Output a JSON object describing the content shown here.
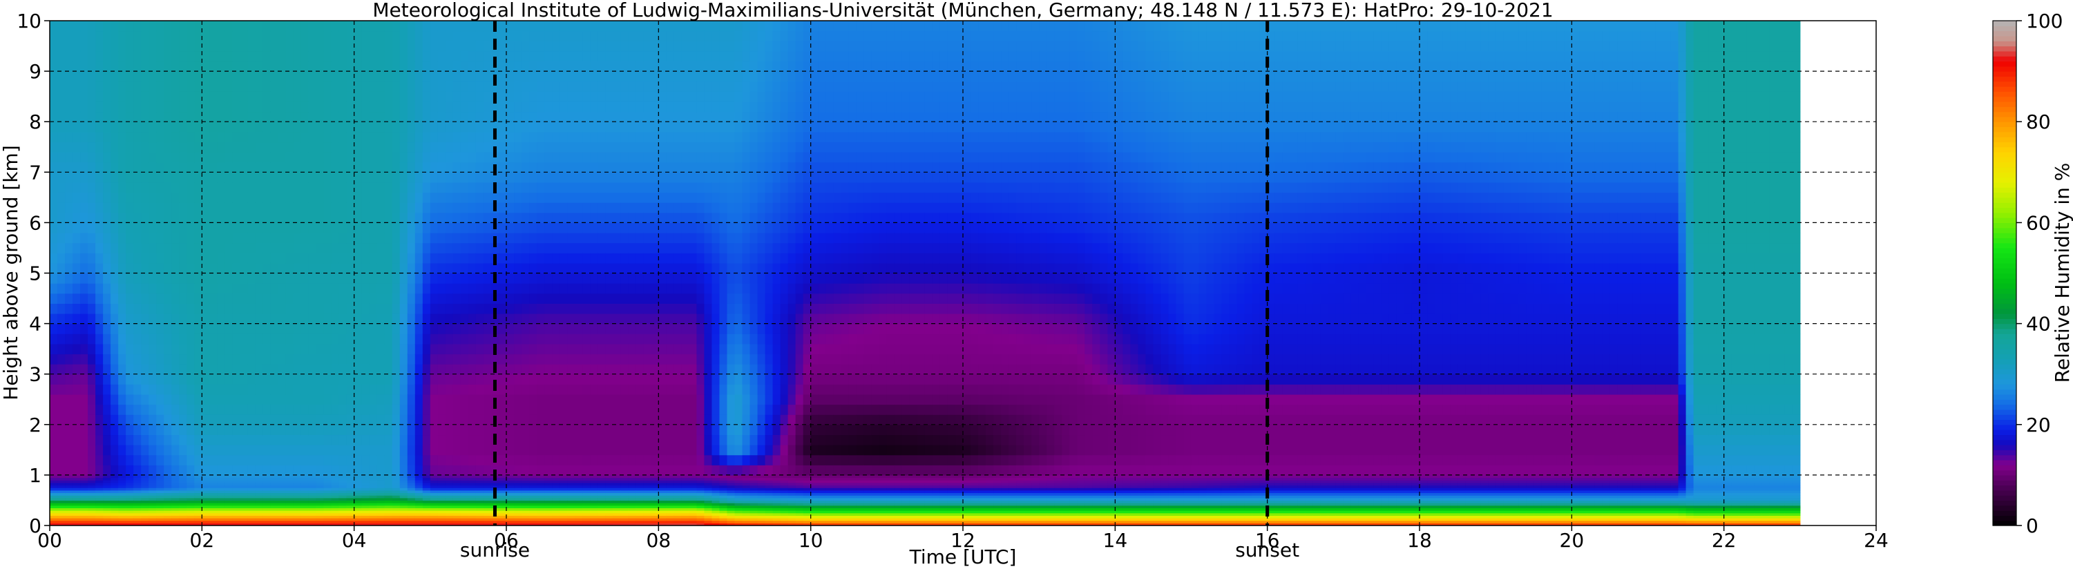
{
  "chart_data": {
    "type": "heatmap",
    "title": "Meteorological Institute of Ludwig-Maximilians-Universität (München, Germany; 48.148 N / 11.573 E):    HatPro: 29-10-2021",
    "xlabel": "Time [UTC]",
    "ylabel": "Height above ground [km]",
    "xlim": [
      0,
      24
    ],
    "ylim": [
      0,
      10
    ],
    "x_ticks": [
      "00",
      "02",
      "04",
      "06",
      "08",
      "10",
      "12",
      "14",
      "16",
      "18",
      "20",
      "22",
      "24"
    ],
    "y_ticks": [
      "0",
      "1",
      "2",
      "3",
      "4",
      "5",
      "6",
      "7",
      "8",
      "9",
      "10"
    ],
    "grid": true,
    "data_end_hour": 23,
    "events": [
      {
        "label": "sunrise",
        "time": 5.85
      },
      {
        "label": "sunset",
        "time": 16.0
      }
    ],
    "colorbar": {
      "label": "Relative Humidity in %",
      "range": [
        0,
        100
      ],
      "ticks": [
        "0",
        "20",
        "40",
        "60",
        "80",
        "100"
      ],
      "colormap": "ncar-like: black-purple-blue-cyan-teal-green-yellow-orange-red-gray"
    },
    "profiles": [
      {
        "time": 0,
        "rh_km": [
          95,
          70,
          40,
          18,
          12,
          12,
          12,
          12,
          14,
          20,
          28,
          30,
          30,
          32,
          32
        ]
      },
      {
        "time": 0.5,
        "rh_km": [
          95,
          70,
          40,
          18,
          12,
          12,
          12,
          12,
          13,
          18,
          24,
          28,
          30,
          32,
          32
        ]
      },
      {
        "time": 1.0,
        "rh_km": [
          95,
          68,
          40,
          20,
          18,
          20,
          22,
          25,
          28,
          30,
          32,
          33,
          34,
          34,
          34
        ]
      },
      {
        "time": 2.0,
        "rh_km": [
          95,
          70,
          42,
          26,
          28,
          30,
          32,
          33,
          34,
          34,
          35,
          35,
          35,
          36,
          36
        ]
      },
      {
        "time": 3.5,
        "rh_km": [
          95,
          70,
          42,
          26,
          28,
          30,
          32,
          33,
          33,
          34,
          34,
          35,
          35,
          35,
          35
        ]
      },
      {
        "time": 4.5,
        "rh_km": [
          95,
          72,
          45,
          30,
          30,
          30,
          31,
          32,
          33,
          33,
          34,
          34,
          34,
          34,
          34
        ]
      },
      {
        "time": 5.0,
        "rh_km": [
          95,
          72,
          40,
          18,
          13,
          12,
          12,
          12,
          13,
          16,
          20,
          24,
          28,
          30,
          30
        ]
      },
      {
        "time": 6.5,
        "rh_km": [
          95,
          70,
          40,
          18,
          12,
          11,
          11,
          11,
          12,
          14,
          18,
          22,
          26,
          28,
          30
        ]
      },
      {
        "time": 8.5,
        "rh_km": [
          96,
          72,
          40,
          18,
          12,
          11,
          11,
          11,
          12,
          14,
          18,
          22,
          26,
          28,
          30
        ]
      },
      {
        "time": 9.0,
        "rh_km": [
          92,
          62,
          32,
          16,
          11,
          28,
          30,
          30,
          28,
          24,
          22,
          24,
          26,
          28,
          30
        ]
      },
      {
        "time": 10.0,
        "rh_km": [
          90,
          58,
          30,
          14,
          10,
          3,
          5,
          9,
          11,
          13,
          17,
          20,
          22,
          24,
          26
        ]
      },
      {
        "time": 11.0,
        "rh_km": [
          90,
          58,
          30,
          14,
          10,
          2,
          4,
          9,
          11,
          12,
          16,
          19,
          22,
          24,
          26
        ]
      },
      {
        "time": 12.0,
        "rh_km": [
          90,
          58,
          30,
          14,
          10,
          3,
          5,
          9,
          11,
          12,
          16,
          19,
          22,
          24,
          26
        ]
      },
      {
        "time": 13.5,
        "rh_km": [
          90,
          58,
          30,
          14,
          12,
          10,
          10,
          10,
          11,
          13,
          17,
          20,
          22,
          24,
          26
        ]
      },
      {
        "time": 15.0,
        "rh_km": [
          90,
          58,
          30,
          15,
          12,
          11,
          11,
          12,
          18,
          20,
          21,
          22,
          24,
          26,
          28
        ]
      },
      {
        "time": 16.0,
        "rh_km": [
          90,
          58,
          30,
          16,
          12,
          11,
          11,
          12,
          17,
          18,
          19,
          21,
          24,
          26,
          28
        ]
      },
      {
        "time": 18.0,
        "rh_km": [
          90,
          58,
          30,
          16,
          12,
          11,
          11,
          12,
          17,
          18,
          18,
          20,
          23,
          26,
          28
        ]
      },
      {
        "time": 20.0,
        "rh_km": [
          90,
          58,
          30,
          16,
          12,
          11,
          11,
          12,
          17,
          18,
          19,
          21,
          24,
          26,
          28
        ]
      },
      {
        "time": 21.4,
        "rh_km": [
          90,
          58,
          30,
          16,
          12,
          11,
          11,
          12,
          17,
          18,
          19,
          21,
          24,
          26,
          28
        ]
      },
      {
        "time": 21.6,
        "rh_km": [
          90,
          55,
          30,
          26,
          28,
          30,
          32,
          33,
          34,
          35,
          35,
          36,
          36,
          36,
          36
        ]
      },
      {
        "time": 23.0,
        "rh_km": [
          90,
          55,
          30,
          26,
          28,
          30,
          32,
          33,
          34,
          35,
          35,
          36,
          36,
          36,
          36
        ]
      }
    ],
    "profile_heights_km": [
      0,
      0.25,
      0.5,
      0.75,
      1,
      1.5,
      2,
      2.5,
      3,
      4,
      5,
      6,
      7,
      8,
      10
    ]
  }
}
